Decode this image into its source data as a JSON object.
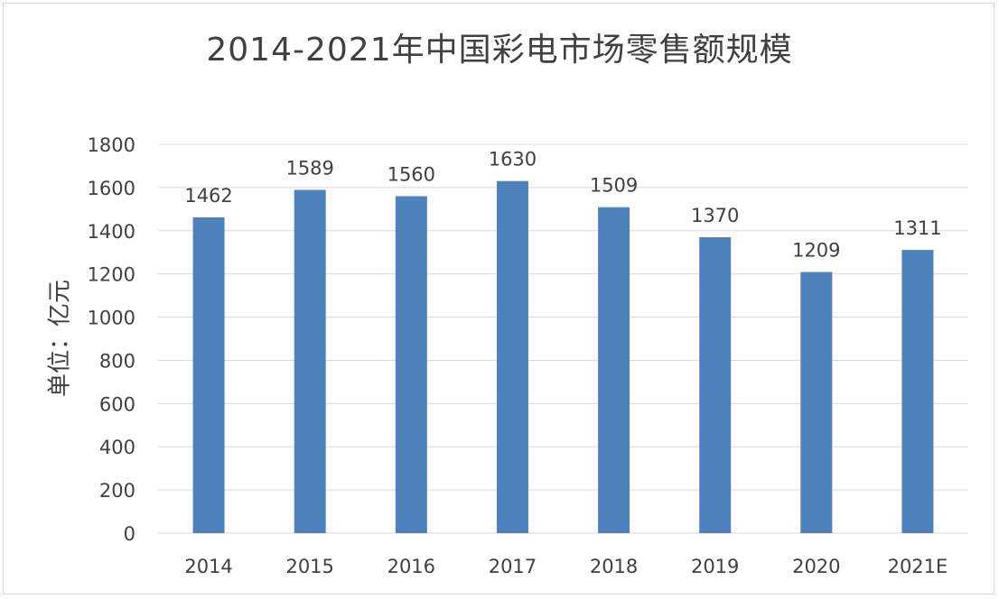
{
  "chart_data": {
    "type": "bar",
    "title": "2014-2021年中国彩电市场零售额规模",
    "ylabel": "单位：亿元",
    "xlabel": "",
    "categories": [
      "2014",
      "2015",
      "2016",
      "2017",
      "2018",
      "2019",
      "2020",
      "2021E"
    ],
    "values": [
      1462,
      1589,
      1560,
      1630,
      1509,
      1370,
      1209,
      1311
    ],
    "ylim": [
      0,
      1800
    ],
    "yticks": [
      "0",
      "200",
      "400",
      "600",
      "800",
      "1000",
      "1200",
      "1400",
      "1600",
      "1800"
    ],
    "grid": true,
    "legend": "none",
    "bar_color": "#4f81bd",
    "grid_color": "#d9d9d9"
  }
}
